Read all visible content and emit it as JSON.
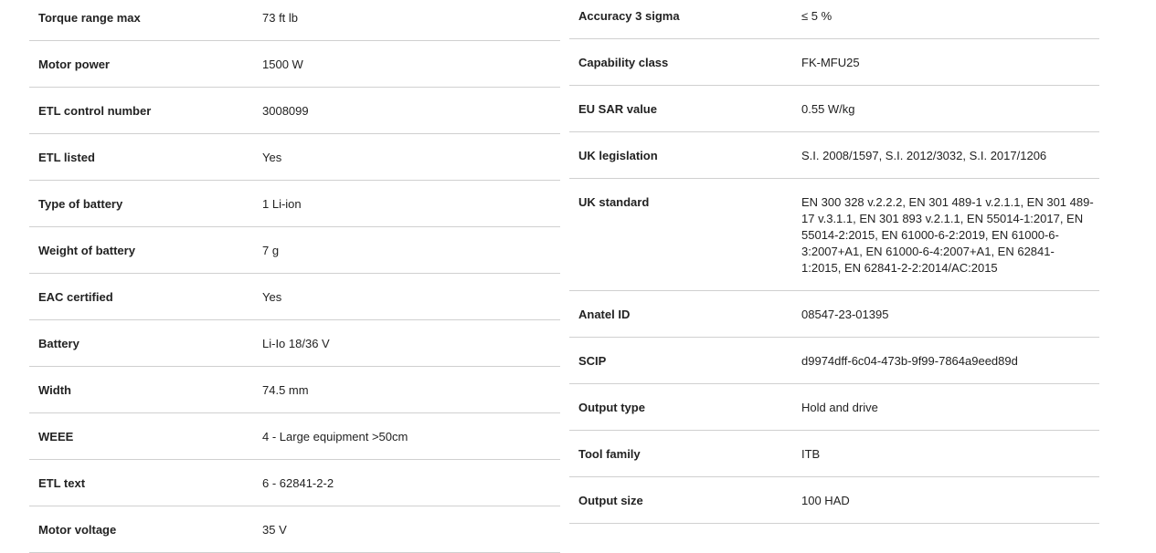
{
  "left_specs": [
    {
      "label": "Torque range max",
      "value": "73 ft lb"
    },
    {
      "label": "Motor power",
      "value": "1500 W"
    },
    {
      "label": "ETL control number",
      "value": "3008099"
    },
    {
      "label": "ETL listed",
      "value": "Yes"
    },
    {
      "label": "Type of battery",
      "value": "1 Li-ion"
    },
    {
      "label": "Weight of battery",
      "value": "7 g"
    },
    {
      "label": "EAC certified",
      "value": "Yes"
    },
    {
      "label": "Battery",
      "value": "Li-Io 18/36 V"
    },
    {
      "label": "Width",
      "value": "74.5 mm"
    },
    {
      "label": "WEEE",
      "value": "4 - Large equipment >50cm"
    },
    {
      "label": "ETL text",
      "value": "6 - 62841-2-2"
    },
    {
      "label": "Motor voltage",
      "value": "35 V"
    }
  ],
  "right_specs": [
    {
      "label": "Accuracy 3 sigma",
      "value": "≤ 5 %"
    },
    {
      "label": "Capability class",
      "value": "FK-MFU25"
    },
    {
      "label": "EU SAR value",
      "value": "0.55 W/kg"
    },
    {
      "label": "UK legislation",
      "value": "S.I. 2008/1597, S.I. 2012/3032, S.I. 2017/1206"
    },
    {
      "label": "UK standard",
      "value": "EN 300 328 v.2.2.2, EN 301 489-1 v.2.1.1, EN 301 489-17 v.3.1.1, EN 301 893 v.2.1.1, EN 55014-1:2017, EN 55014-2:2015, EN 61000-6-2:2019, EN 61000-6-3:2007+A1, EN 61000-6-4:2007+A1, EN 62841-1:2015, EN 62841-2-2:2014/AC:2015"
    },
    {
      "label": "Anatel ID",
      "value": "08547-23-01395"
    },
    {
      "label": "SCIP",
      "value": "d9974dff-6c04-473b-9f99-7864a9eed89d"
    },
    {
      "label": "Output type",
      "value": "Hold and drive"
    },
    {
      "label": "Tool family",
      "value": "ITB"
    },
    {
      "label": "Output size",
      "value": "100 HAD"
    }
  ]
}
